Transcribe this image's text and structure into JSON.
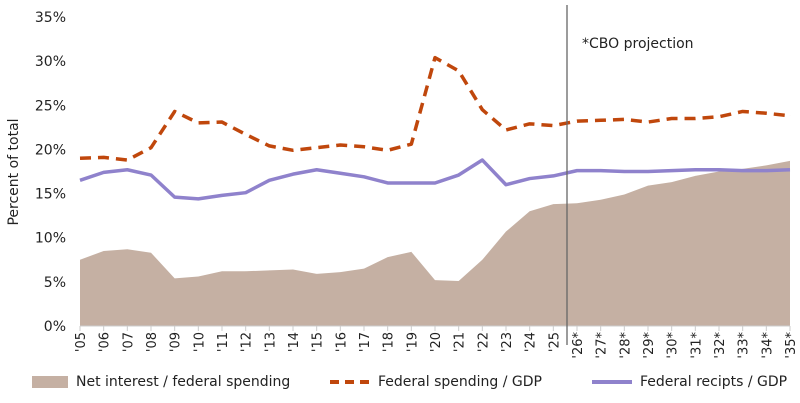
{
  "chart_data": {
    "type": "line",
    "ylabel": "Percent of total",
    "xlabel": "",
    "ylim": [
      0,
      35
    ],
    "yticks": [
      "0%",
      "5%",
      "10%",
      "15%",
      "20%",
      "25%",
      "30%",
      "35%"
    ],
    "categories": [
      "'05",
      "'06",
      "'07",
      "'08",
      "'09",
      "'10",
      "'11",
      "'12",
      "'13",
      "'14",
      "'15",
      "'16",
      "'17",
      "'18",
      "'19",
      "'20",
      "'21",
      "'22",
      "'23",
      "'24",
      "'25",
      "'26*",
      "'27*",
      "'28*",
      "'29*",
      "'30*",
      "'31*",
      "'32*",
      "'33*",
      "'34*",
      "'35*"
    ],
    "grid": false,
    "legend_position": "bottom",
    "annotation": "*CBO projection",
    "projection_start_after": "'25",
    "series": [
      {
        "name": "Net interest / federal spending",
        "style": "area",
        "color": "#c5b0a3",
        "values": [
          7.5,
          8.5,
          8.7,
          8.3,
          5.4,
          5.6,
          6.2,
          6.2,
          6.3,
          6.4,
          5.9,
          6.1,
          6.5,
          7.8,
          8.4,
          5.2,
          5.1,
          7.5,
          10.7,
          13.0,
          13.8,
          13.9,
          14.3,
          14.9,
          15.9,
          16.3,
          17.0,
          17.5,
          17.8,
          18.2,
          18.7
        ]
      },
      {
        "name": "Federal spending / GDP",
        "style": "dashed",
        "color": "#c0470c",
        "values": [
          19.0,
          19.1,
          18.8,
          20.2,
          24.3,
          23.0,
          23.1,
          21.7,
          20.4,
          19.9,
          20.2,
          20.5,
          20.3,
          19.9,
          20.6,
          30.4,
          28.9,
          24.5,
          22.2,
          22.9,
          22.7,
          23.2,
          23.3,
          23.4,
          23.1,
          23.5,
          23.5,
          23.7,
          24.3,
          24.1,
          23.8
        ]
      },
      {
        "name": "Federal recipts / GDP",
        "style": "solid",
        "color": "#8f82cc",
        "values": [
          16.5,
          17.4,
          17.7,
          17.1,
          14.6,
          14.4,
          14.8,
          15.1,
          16.5,
          17.2,
          17.7,
          17.3,
          16.9,
          16.2,
          16.2,
          16.2,
          17.1,
          18.8,
          16.0,
          16.7,
          17.0,
          17.6,
          17.6,
          17.5,
          17.5,
          17.6,
          17.7,
          17.7,
          17.6,
          17.6,
          17.7
        ]
      }
    ]
  }
}
